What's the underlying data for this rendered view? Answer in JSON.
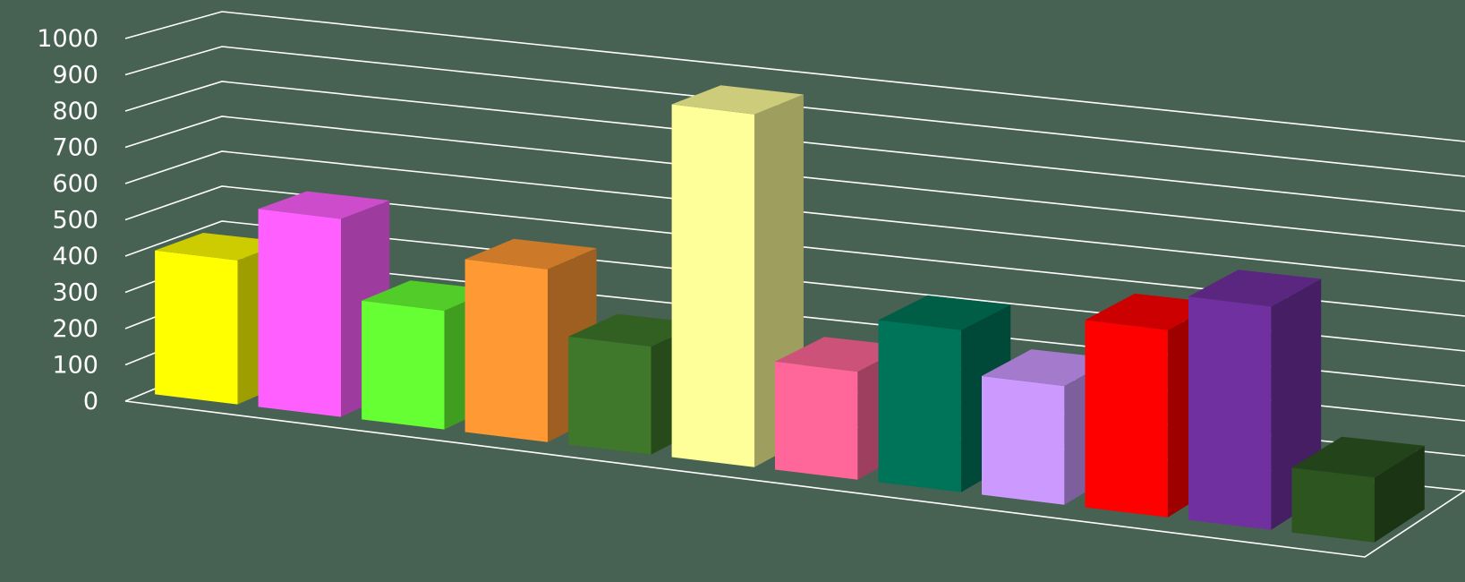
{
  "background_color": "#476153",
  "chart_data": {
    "type": "bar",
    "style": "3d-column",
    "title": "",
    "xlabel": "",
    "ylabel": "",
    "ylim": [
      0,
      1000
    ],
    "y_ticks": [
      "0",
      "100",
      "200",
      "300",
      "400",
      "500",
      "600",
      "700",
      "800",
      "900",
      "1000"
    ],
    "grid": true,
    "legend": "none",
    "values": [
      400,
      550,
      330,
      480,
      300,
      980,
      300,
      450,
      330,
      520,
      620,
      180
    ],
    "colors": [
      "#ffff00",
      "#ff5fff",
      "#66ff33",
      "#ff9933",
      "#3f772b",
      "#ffff99",
      "#ff6699",
      "#007458",
      "#cc99ff",
      "#ff0000",
      "#7030a0",
      "#2c5520"
    ]
  }
}
